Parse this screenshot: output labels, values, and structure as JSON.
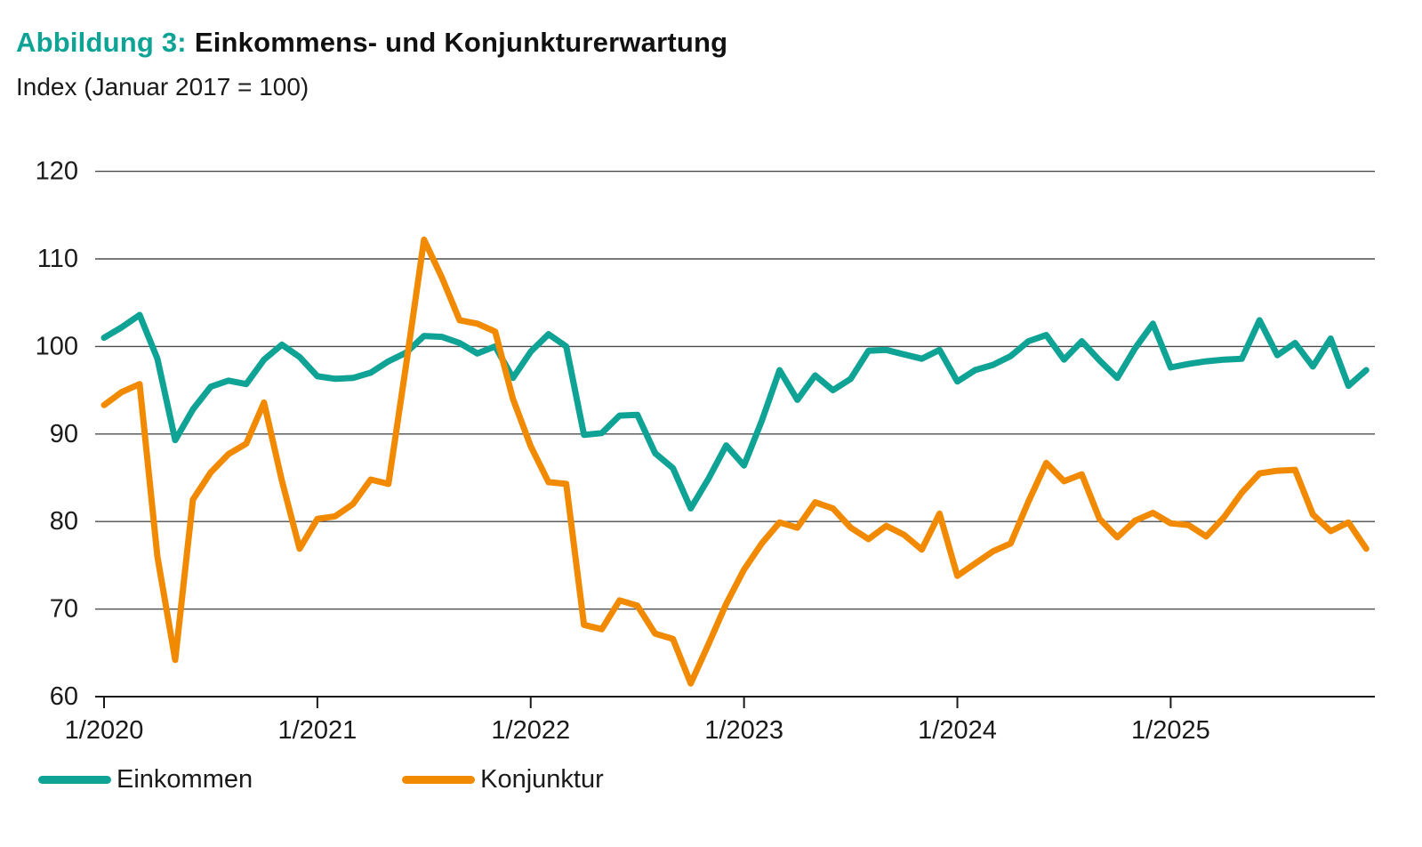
{
  "header": {
    "title_prefix": "Abbildung 3:",
    "title_main": "Einkommens- und Konjunkturerwartung",
    "subtitle": "Index (Januar 2017 = 100)"
  },
  "colors": {
    "einkommen": "#0FA396",
    "konjunktur": "#F18A00",
    "axis": "#1a1a1a",
    "gridline": "#4d4d4d",
    "text": "#1a1a1a"
  },
  "chart_data": {
    "type": "line",
    "title": "Abbildung 3: Einkommens- und Konjunkturerwartung",
    "subtitle": "Index (Januar 2017 = 100)",
    "xlabel": "",
    "ylabel": "Index (Januar 2017 = 100)",
    "x_start": "1/2020",
    "x_end": "12/2025",
    "x_frequency": "monthly",
    "x_tick_labels": [
      "1/2020",
      "1/2021",
      "1/2022",
      "1/2023",
      "1/2024",
      "1/2025"
    ],
    "ylim": [
      60,
      120
    ],
    "y_ticks": [
      60,
      70,
      80,
      90,
      100,
      110,
      120
    ],
    "grid": "horizontal",
    "legend_position": "bottom-left",
    "series": [
      {
        "name": "Einkommen",
        "color": "#0FA396",
        "values": [
          101.0,
          102.2,
          103.6,
          98.6,
          89.3,
          92.8,
          95.4,
          96.1,
          95.7,
          98.5,
          100.2,
          98.8,
          96.6,
          96.3,
          96.4,
          97.0,
          98.3,
          99.3,
          101.2,
          101.1,
          100.4,
          99.2,
          100.0,
          96.4,
          99.4,
          101.4,
          100.0,
          89.9,
          90.1,
          92.1,
          92.2,
          87.8,
          86.1,
          81.5,
          84.9,
          88.7,
          86.4,
          91.5,
          97.3,
          93.9,
          96.7,
          95.0,
          96.3,
          99.5,
          99.6,
          99.1,
          98.6,
          99.6,
          96.0,
          97.3,
          97.9,
          98.9,
          100.6,
          101.3,
          98.5,
          100.6,
          98.4,
          96.4,
          99.8,
          102.6,
          97.6,
          98.0,
          98.3,
          98.5,
          98.6,
          103.0,
          99.0,
          100.4,
          97.7,
          100.9,
          95.5,
          97.3
        ]
      },
      {
        "name": "Konjunktur",
        "color": "#F18A00",
        "values": [
          93.3,
          94.8,
          95.7,
          76.0,
          64.2,
          82.5,
          85.6,
          87.7,
          88.9,
          93.6,
          84.7,
          76.9,
          80.3,
          80.6,
          82.0,
          84.8,
          84.3,
          98.0,
          112.2,
          107.9,
          103.0,
          102.6,
          101.7,
          94.0,
          88.6,
          84.5,
          84.3,
          68.2,
          67.7,
          71.0,
          70.4,
          67.2,
          66.6,
          61.5,
          66.0,
          70.6,
          74.5,
          77.5,
          79.9,
          79.3,
          82.2,
          81.5,
          79.3,
          78.0,
          79.5,
          78.5,
          76.8,
          80.9,
          73.8,
          75.2,
          76.6,
          77.5,
          82.3,
          86.7,
          84.6,
          85.4,
          80.3,
          78.2,
          80.1,
          81.0,
          79.8,
          79.6,
          78.3,
          80.5,
          83.3,
          85.5,
          85.8,
          85.9,
          80.8,
          78.9,
          79.9,
          76.9
        ]
      }
    ]
  },
  "legend": {
    "items": [
      {
        "label": "Einkommen"
      },
      {
        "label": "Konjunktur"
      }
    ]
  }
}
